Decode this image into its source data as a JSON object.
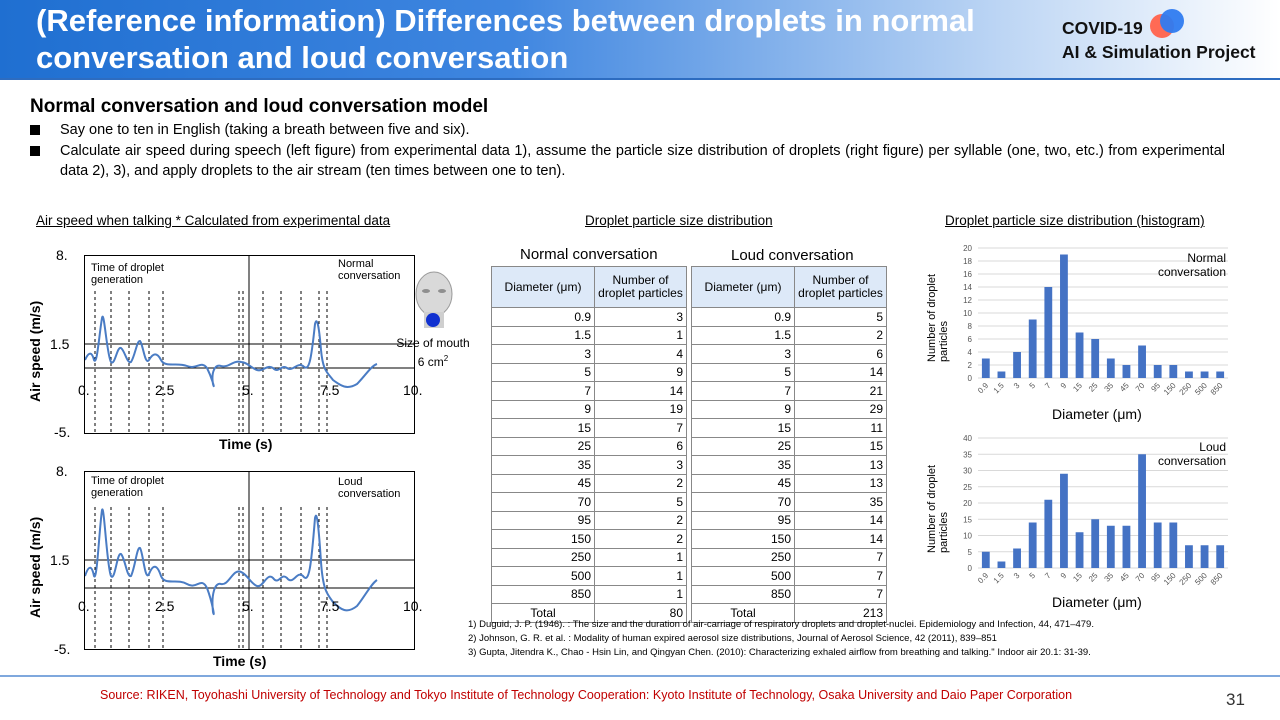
{
  "header": {
    "title": "(Reference information) Differences between droplets in normal conversation and loud conversation",
    "logo_line1": "COVID-19",
    "logo_line2": "AI & Simulation Project"
  },
  "subheading": "Normal conversation and loud conversation model",
  "bullets": [
    "Say one to ten in English (taking a breath between five and six).",
    "Calculate air speed during speech (left figure) from experimental data 1), assume the particle size distribution of droplets (right figure) per syllable (one, two, etc.) from experimental data 2), 3), and apply droplets to the air stream (ten times between one to ten)."
  ],
  "sections": {
    "left": "Air speed when talking * Calculated from experimental data",
    "middle": "Droplet particle size distribution",
    "right": "Droplet particle size distribution (histogram)"
  },
  "air_plots": {
    "ylabel": "Air speed (m/s)",
    "xlabel": "Time (s)",
    "yticks": [
      "8.",
      "1.5",
      "-5."
    ],
    "xticks": [
      "0.",
      "2.5",
      "5.",
      "7.5",
      "10."
    ],
    "annotation": "Time of droplet generation",
    "normal_label": "Normal conversation",
    "loud_label": "Loud conversation"
  },
  "mouth": {
    "label": "Size of mouth 6 cm",
    "sup": "2"
  },
  "tables": {
    "normal_title": "Normal conversation",
    "loud_title": "Loud conversation",
    "col_diameter": "Diameter (μm)",
    "col_number": "Number of droplet particles",
    "total_label": "Total",
    "diameters": [
      "0.9",
      "1.5",
      "3",
      "5",
      "7",
      "9",
      "15",
      "25",
      "35",
      "45",
      "70",
      "95",
      "150",
      "250",
      "500",
      "850"
    ],
    "normal_counts": [
      3,
      1,
      4,
      9,
      14,
      19,
      7,
      6,
      3,
      2,
      5,
      2,
      2,
      1,
      1,
      1
    ],
    "loud_counts": [
      5,
      2,
      6,
      14,
      21,
      29,
      11,
      15,
      13,
      13,
      35,
      14,
      14,
      7,
      7,
      7
    ],
    "normal_total": "80",
    "loud_total": "213"
  },
  "histograms": {
    "ylabel": "Number of droplet particles",
    "xlabel": "Diameter (μm)",
    "normal_label": "Normal conversation",
    "loud_label": "Loud conversation"
  },
  "chart_data": [
    {
      "type": "bar",
      "title": "",
      "categories": [
        "0.9",
        "1.5",
        "3",
        "5",
        "7",
        "9",
        "15",
        "25",
        "35",
        "45",
        "70",
        "95",
        "150",
        "250",
        "500",
        "850"
      ],
      "series": [
        {
          "name": "Normal conversation",
          "values": [
            3,
            1,
            4,
            9,
            14,
            19,
            7,
            6,
            3,
            2,
            5,
            2,
            2,
            1,
            1,
            1
          ]
        }
      ],
      "xlabel": "Diameter (μm)",
      "ylabel": "Number of droplet particles",
      "ylim": [
        0,
        20
      ],
      "yticks": [
        0,
        2,
        4,
        6,
        8,
        10,
        12,
        14,
        16,
        18,
        20
      ],
      "grid": true,
      "legend": "top-right"
    },
    {
      "type": "bar",
      "title": "",
      "categories": [
        "0.9",
        "1.5",
        "3",
        "5",
        "7",
        "9",
        "15",
        "25",
        "35",
        "45",
        "70",
        "95",
        "150",
        "250",
        "500",
        "850"
      ],
      "series": [
        {
          "name": "Loud conversation",
          "values": [
            5,
            2,
            6,
            14,
            21,
            29,
            11,
            15,
            13,
            13,
            35,
            14,
            14,
            7,
            7,
            7
          ]
        }
      ],
      "xlabel": "Diameter (μm)",
      "ylabel": "Number of droplet particles",
      "ylim": [
        0,
        40
      ],
      "yticks": [
        0,
        5,
        10,
        15,
        20,
        25,
        30,
        35,
        40
      ],
      "grid": true,
      "legend": "top-right"
    }
  ],
  "references": [
    "1)  Duguid, J. P. (1946). : The size and the duration of air-carriage of respiratory droplets and droplet-nuclei. Epidemiology and Infection, 44, 471–479.",
    "2)  Johnson, G. R. et al. : Modality of human expired aerosol size distributions, Journal of Aerosol Science, 42 (2011), 839–851",
    "3)  Gupta, Jitendra K., Chao - Hsin Lin, and Qingyan Chen. (2010): Characterizing exhaled airflow from breathing and talking.\" Indoor air 20.1: 31-39."
  ],
  "footer": {
    "source": "Source: RIKEN,  Toyohashi University of Technology and Tokyo Institute of Technology  Cooperation: Kyoto Institute of Technology, Osaka University and Daio Paper Corporation",
    "page": "31"
  },
  "colors": {
    "accent": "#1f6fd1",
    "bar": "#4472c4",
    "curve": "#4a7cc4",
    "source_text": "#c00000"
  }
}
